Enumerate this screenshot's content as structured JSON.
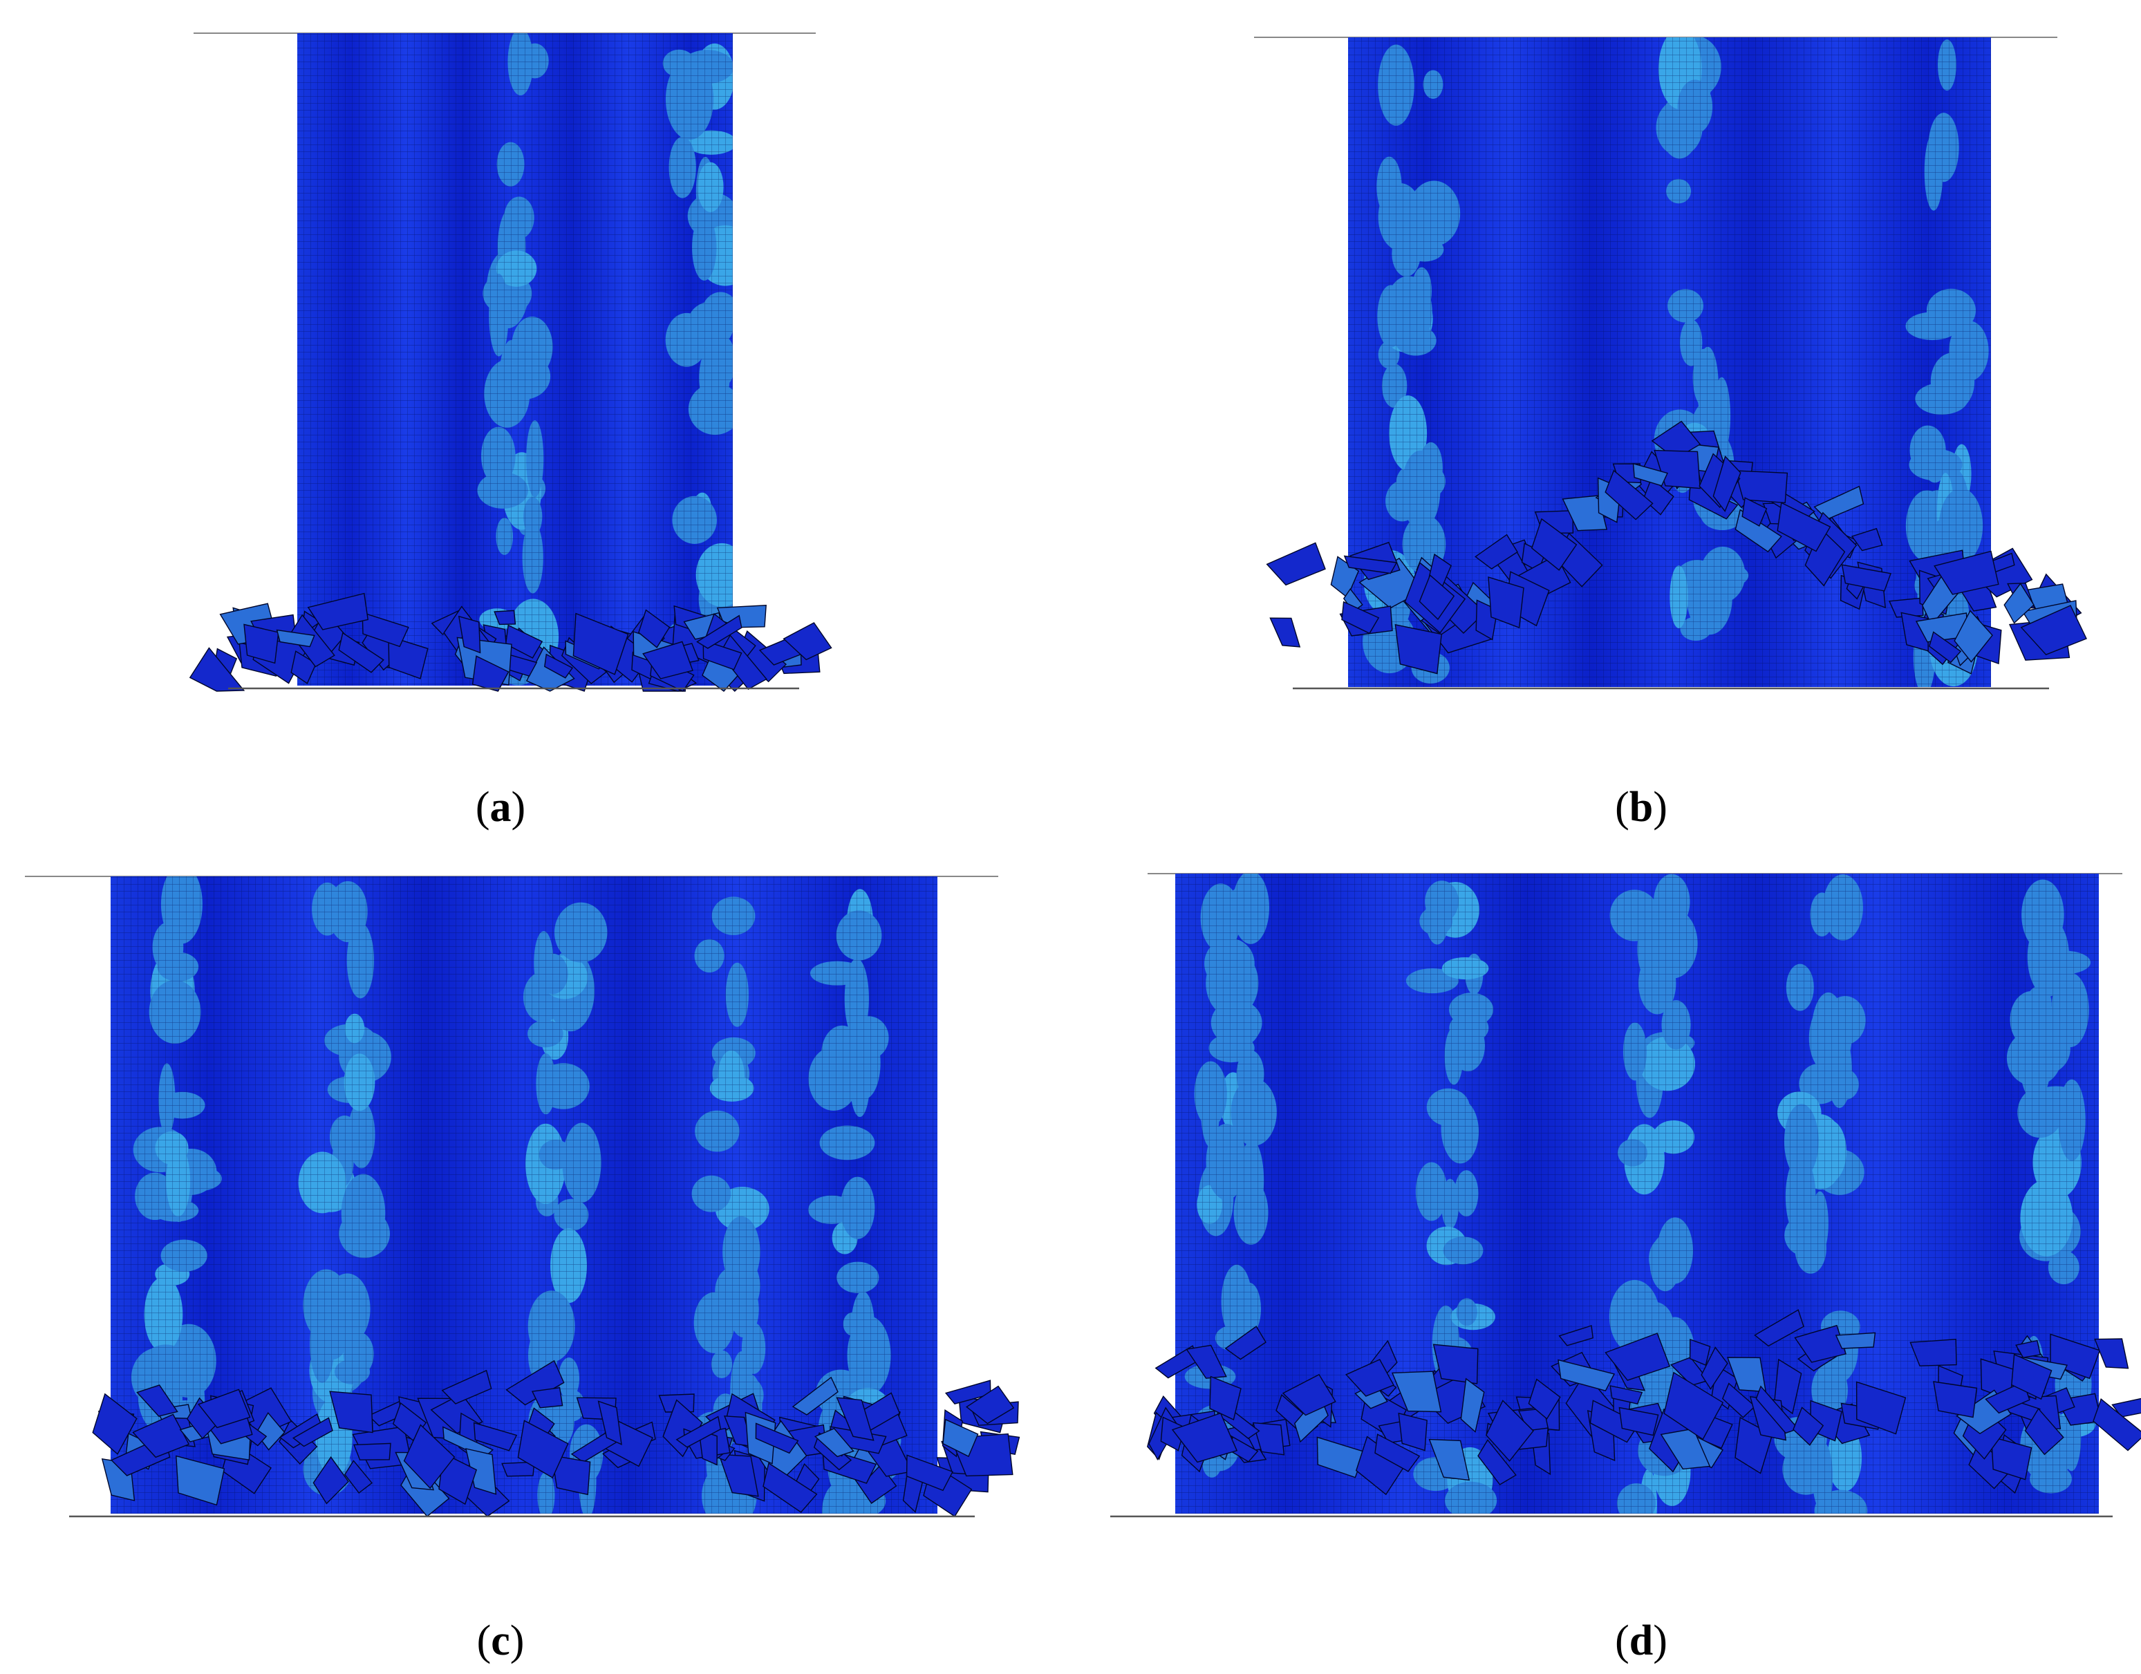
{
  "captions": [
    {
      "prefix": "(",
      "letter": "a",
      "suffix": ")"
    },
    {
      "prefix": "(",
      "letter": "b",
      "suffix": ")"
    },
    {
      "prefix": "(",
      "letter": "c",
      "suffix": ")"
    },
    {
      "prefix": "(",
      "letter": "d",
      "suffix": ")"
    }
  ]
}
